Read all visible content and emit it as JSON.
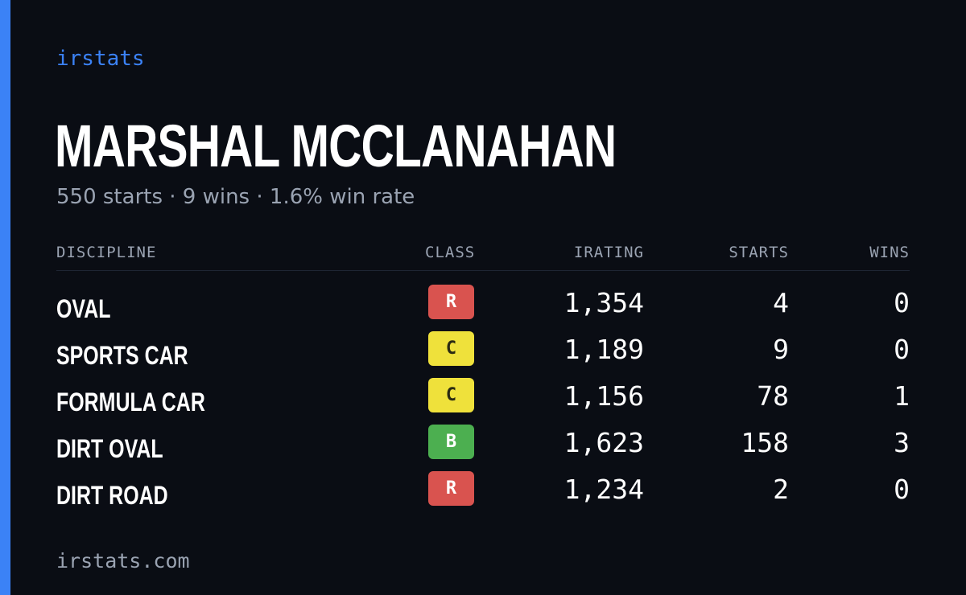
{
  "brand": "irstats",
  "driver": {
    "name": "MARSHAL MCCLANAHAN",
    "summary": "550 starts · 9 wins · 1.6% win rate"
  },
  "table": {
    "headers": {
      "discipline": "DISCIPLINE",
      "class": "CLASS",
      "irating": "IRATING",
      "starts": "STARTS",
      "wins": "WINS"
    },
    "rows": [
      {
        "discipline": "OVAL",
        "class": "R",
        "class_color": "#d9534f",
        "class_text_color": "#ffffff",
        "irating": "1,354",
        "starts": "4",
        "wins": "0"
      },
      {
        "discipline": "SPORTS CAR",
        "class": "C",
        "class_color": "#efe13b",
        "class_text_color": "#2a2a12",
        "irating": "1,189",
        "starts": "9",
        "wins": "0"
      },
      {
        "discipline": "FORMULA CAR",
        "class": "C",
        "class_color": "#efe13b",
        "class_text_color": "#2a2a12",
        "irating": "1,156",
        "starts": "78",
        "wins": "1"
      },
      {
        "discipline": "DIRT OVAL",
        "class": "B",
        "class_color": "#4caf50",
        "class_text_color": "#ffffff",
        "irating": "1,623",
        "starts": "158",
        "wins": "3"
      },
      {
        "discipline": "DIRT ROAD",
        "class": "R",
        "class_color": "#d9534f",
        "class_text_color": "#ffffff",
        "irating": "1,234",
        "starts": "2",
        "wins": "0"
      }
    ]
  },
  "footer": "irstats.com",
  "colors": {
    "background": "#0a0d14",
    "accent": "#3b82f6",
    "muted_text": "#9aa3b2"
  }
}
